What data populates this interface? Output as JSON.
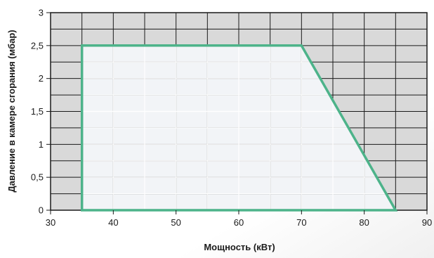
{
  "chart_data": {
    "type": "area",
    "title": "",
    "xlabel": "Мощность (кВт)",
    "ylabel": "Давление в камере сгорания (мбар)",
    "xlim": [
      30,
      90
    ],
    "ylim": [
      0,
      3
    ],
    "x_ticks": [
      30,
      40,
      50,
      60,
      70,
      80,
      90
    ],
    "x_tick_labels": [
      "30",
      "40",
      "50",
      "60",
      "70",
      "80",
      "90"
    ],
    "y_ticks": [
      0,
      0.5,
      1,
      1.5,
      2,
      2.5,
      3
    ],
    "y_tick_labels": [
      "0",
      "0,5",
      "1",
      "1,5",
      "2",
      "2,5",
      "3"
    ],
    "grid": true,
    "legend": "none",
    "series": [
      {
        "x": [
          35,
          35,
          70,
          85,
          35
        ],
        "y": [
          0,
          2.5,
          2.5,
          0,
          0
        ]
      }
    ],
    "colors": {
      "plot_background": "#d9d9d9",
      "region_fill": "#f2f4f7",
      "region_stroke": "#4db38a",
      "grid_outside": "#1a1a1a",
      "grid_inside": "#ffffff",
      "text": "#1a1a1a"
    }
  }
}
